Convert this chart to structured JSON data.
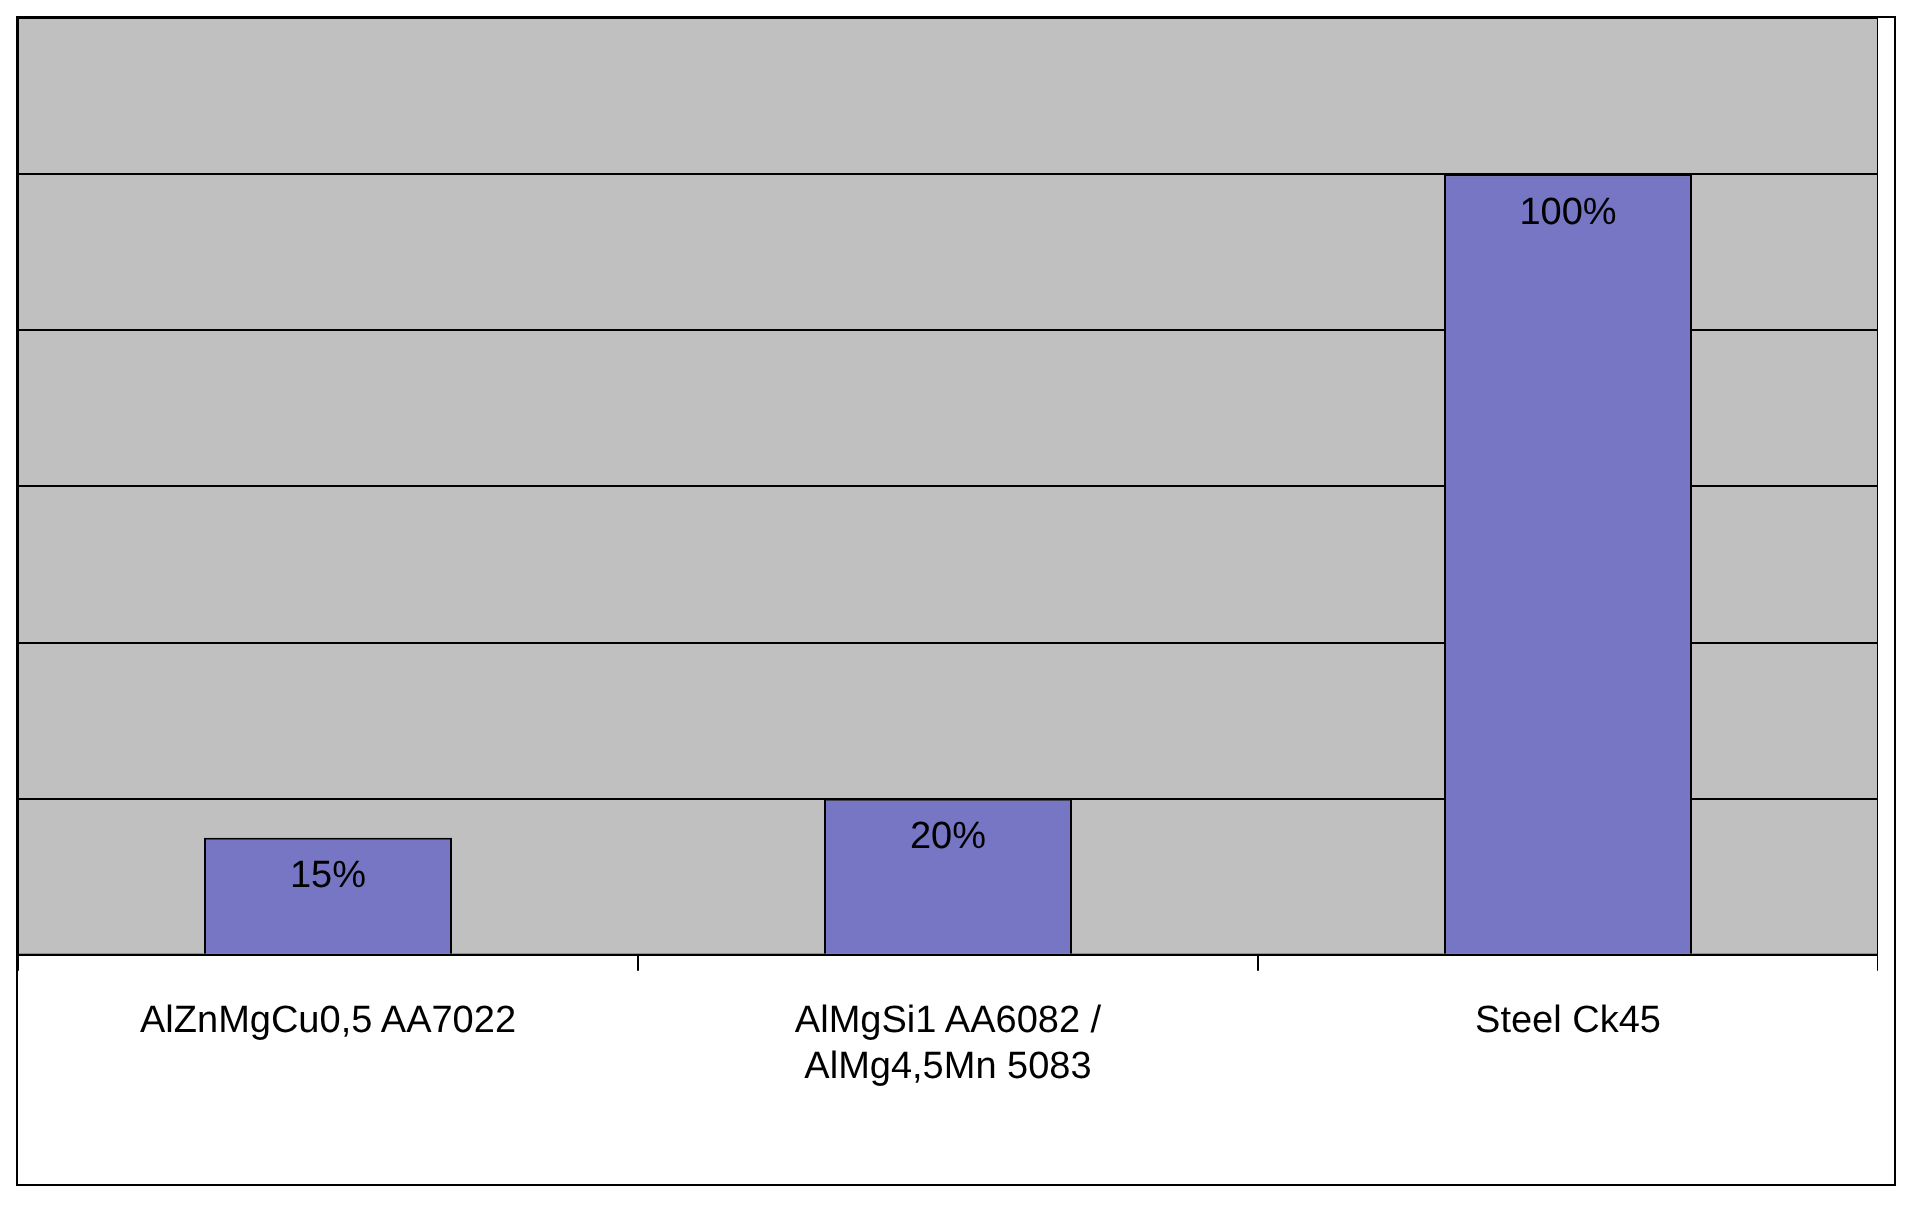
{
  "chart_data": {
    "type": "bar",
    "categories": [
      "AlZnMgCu0,5 AA7022",
      "AlMgSi1 AA6082 / AlMg4,5Mn 5083",
      "Steel Ck45"
    ],
    "values": [
      15,
      20,
      100
    ],
    "value_labels": [
      "15%",
      "20%",
      "100%"
    ],
    "color": "#7676c4",
    "ylim": [
      0,
      120
    ],
    "tick_labels": "x",
    "grid": "y",
    "legend": false
  }
}
